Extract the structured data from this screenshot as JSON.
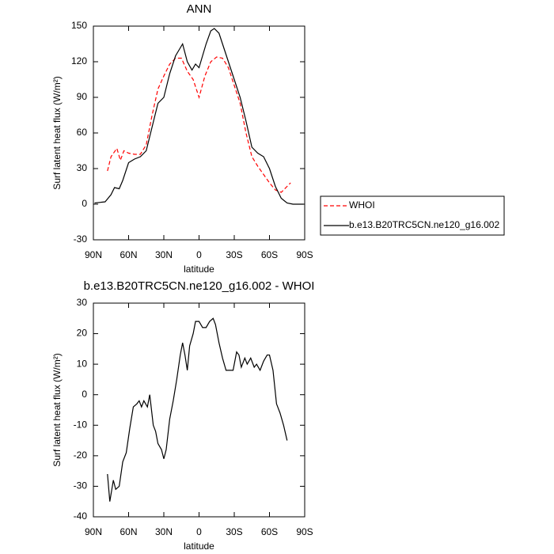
{
  "chart_data": [
    {
      "type": "line",
      "title": "ANN",
      "xlabel": "latitude",
      "ylabel": "Surf latent heat flux (W/m²)",
      "xlim": [
        90,
        -90
      ],
      "xticks": [
        {
          "value": 90,
          "label": "90N"
        },
        {
          "value": 60,
          "label": "60N"
        },
        {
          "value": 30,
          "label": "30N"
        },
        0,
        {
          "value": -30,
          "label": "30S"
        },
        {
          "value": -60,
          "label": "60S"
        },
        {
          "value": -90,
          "label": "90S"
        }
      ],
      "ylim": [
        -30,
        150
      ],
      "yticks": [
        -30,
        0,
        30,
        60,
        90,
        120,
        150
      ],
      "legend": "right",
      "series": [
        {
          "name": "WHOI",
          "color": "#ff0000",
          "dash": true,
          "x": [
            78,
            75,
            70,
            67,
            64,
            60,
            55,
            50,
            45,
            40,
            35,
            30,
            25,
            20,
            15,
            10,
            5,
            0,
            -5,
            -10,
            -15,
            -20,
            -25,
            -30,
            -35,
            -40,
            -45,
            -50,
            -55,
            -60,
            -65,
            -70,
            -75,
            -78
          ],
          "values": [
            28,
            40,
            47,
            37,
            45,
            43,
            42,
            42,
            50,
            75,
            97,
            108,
            118,
            123,
            123,
            112,
            105,
            90,
            108,
            120,
            124,
            123,
            115,
            100,
            85,
            60,
            40,
            32,
            25,
            18,
            12,
            10,
            15,
            18
          ]
        },
        {
          "name": "b.e13.B20TRC5CN.ne120_g16.002",
          "color": "#000000",
          "dash": false,
          "x": [
            89,
            80,
            75,
            72,
            68,
            65,
            60,
            55,
            50,
            45,
            40,
            35,
            30,
            25,
            20,
            17,
            14,
            10,
            6,
            3,
            0,
            -3,
            -6,
            -10,
            -13,
            -17,
            -20,
            -25,
            -30,
            -35,
            -40,
            -45,
            -50,
            -55,
            -60,
            -65,
            -70,
            -75,
            -80,
            -89
          ],
          "values": [
            1,
            2,
            8,
            14,
            13,
            20,
            35,
            38,
            40,
            45,
            65,
            85,
            90,
            110,
            125,
            130,
            135,
            120,
            113,
            118,
            115,
            125,
            135,
            146,
            148,
            144,
            135,
            120,
            105,
            90,
            70,
            48,
            43,
            40,
            30,
            15,
            5,
            1,
            0,
            0
          ]
        }
      ]
    },
    {
      "type": "line",
      "title": "b.e13.B20TRC5CN.ne120_g16.002 - WHOI",
      "xlabel": "latitude",
      "ylabel": "Surf latent heat flux (W/m²)",
      "xlim": [
        90,
        -90
      ],
      "xticks": [
        {
          "value": 90,
          "label": "90N"
        },
        {
          "value": 60,
          "label": "60N"
        },
        {
          "value": 30,
          "label": "30N"
        },
        0,
        {
          "value": -30,
          "label": "30S"
        },
        {
          "value": -60,
          "label": "60S"
        },
        {
          "value": -90,
          "label": "90S"
        }
      ],
      "ylim": [
        -40,
        30
      ],
      "yticks": [
        -40,
        -30,
        -20,
        -10,
        0,
        10,
        20,
        30
      ],
      "series": [
        {
          "color": "#000000",
          "dash": false,
          "x": [
            78,
            76,
            73,
            71,
            68,
            65,
            62,
            59,
            56,
            53,
            51,
            49,
            47,
            44,
            42,
            39,
            37,
            35,
            32,
            30,
            28,
            25,
            22,
            19,
            16,
            14,
            12,
            10,
            8,
            5,
            3,
            0,
            -3,
            -6,
            -9,
            -12,
            -14,
            -17,
            -20,
            -23,
            -26,
            -29,
            -32,
            -34,
            -36,
            -39,
            -41,
            -44,
            -47,
            -49,
            -52,
            -55,
            -58,
            -60,
            -63,
            -66,
            -69,
            -72,
            -75
          ],
          "values": [
            -26,
            -35,
            -28,
            -31,
            -30,
            -22,
            -19,
            -11,
            -4,
            -3,
            -2,
            -4,
            -2,
            -4,
            0,
            -10,
            -12,
            -16,
            -18,
            -21,
            -18,
            -8,
            -2,
            5,
            13,
            17,
            13,
            8,
            16,
            20,
            24,
            24,
            22,
            22,
            24,
            25,
            23,
            17,
            12,
            8,
            8,
            8,
            14,
            13,
            9,
            12,
            10,
            12,
            9,
            10,
            8,
            11,
            13,
            13,
            8,
            -3,
            -6,
            -10,
            -15
          ]
        }
      ]
    }
  ]
}
